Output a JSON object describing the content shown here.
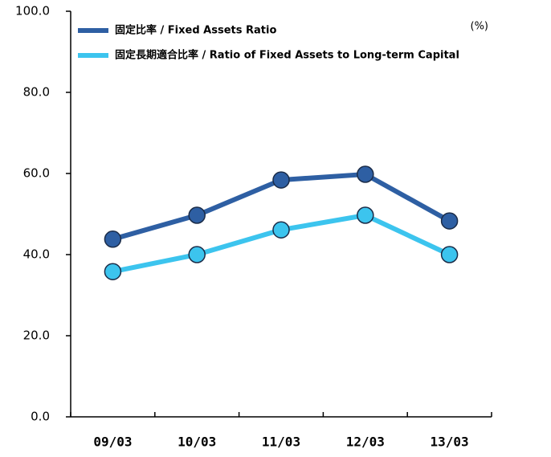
{
  "chart_data": {
    "type": "line",
    "annotation": "(%)",
    "categories": [
      "09/03",
      "10/03",
      "11/03",
      "12/03",
      "13/03"
    ],
    "series": [
      {
        "name": "固定比率 / Fixed Assets Ratio",
        "color": "#2e5fa3",
        "values": [
          43.8,
          49.7,
          58.4,
          59.8,
          48.3
        ]
      },
      {
        "name": "固定長期適合比率 / Ratio of Fixed Assets to Long-term Capital",
        "color": "#3cc4ee",
        "values": [
          35.8,
          40.0,
          46.1,
          49.7,
          40.0
        ]
      }
    ],
    "ylim": [
      0,
      100
    ],
    "yticks": [
      {
        "value": 0,
        "label": "0.0"
      },
      {
        "value": 20,
        "label": "20.0"
      },
      {
        "value": 40,
        "label": "40.0"
      },
      {
        "value": 60,
        "label": "60.0"
      },
      {
        "value": 80,
        "label": "80.0"
      },
      {
        "value": 100,
        "label": "100.0"
      }
    ],
    "grid": false,
    "legend": "top-left"
  }
}
